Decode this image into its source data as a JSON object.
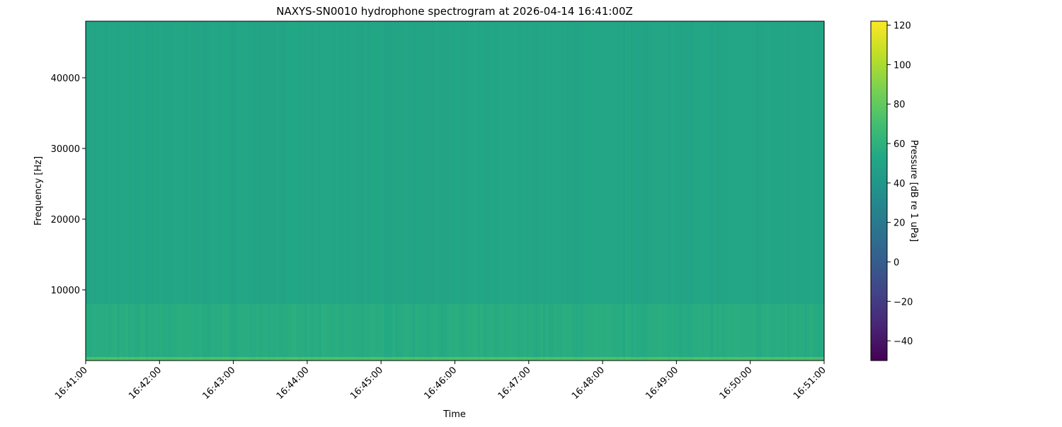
{
  "chart_data": {
    "type": "heatmap",
    "title": "NAXYS-SN0010 hydrophone spectrogram at 2026-04-14 16:41:00Z",
    "xlabel": "Time",
    "ylabel": "Frequency [Hz]",
    "x_ticks": [
      "16:41:00",
      "16:42:00",
      "16:43:00",
      "16:44:00",
      "16:45:00",
      "16:46:00",
      "16:47:00",
      "16:48:00",
      "16:49:00",
      "16:50:00",
      "16:51:00"
    ],
    "y_ticks": [
      10000,
      20000,
      30000,
      40000
    ],
    "y_tick_labels": [
      "10000",
      "20000",
      "30000",
      "40000"
    ],
    "ylim": [
      0,
      48000
    ],
    "colormap": "viridis",
    "colorbar": {
      "label": "Pressure [dB re 1 uPa]",
      "range": [
        -50,
        122
      ],
      "ticks": [
        -40,
        -20,
        0,
        20,
        40,
        60,
        80,
        100,
        120
      ],
      "tick_labels": [
        "−40",
        "−20",
        "0",
        "20",
        "40",
        "60",
        "80",
        "100",
        "120"
      ]
    },
    "typical_level_db": 52,
    "low_frequency_band": {
      "freq_max_hz": 500,
      "level_db": 72
    },
    "bands": [
      {
        "freq_range_hz": [
          0,
          500
        ],
        "level_db": 72
      },
      {
        "freq_range_hz": [
          500,
          8000
        ],
        "level_db": 55
      },
      {
        "freq_range_hz": [
          8000,
          48000
        ],
        "level_db": 51
      }
    ],
    "grid": false
  }
}
